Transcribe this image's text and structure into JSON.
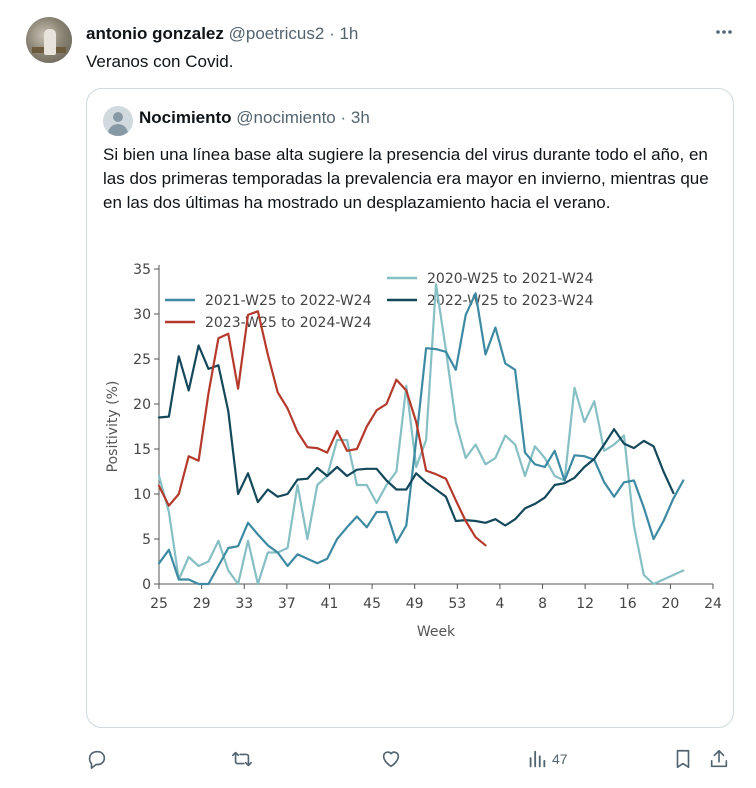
{
  "tweet": {
    "author_name": "antonio gonzalez",
    "author_handle": "@poetricus2",
    "separator": "·",
    "time": "1h",
    "text": "Veranos con Covid."
  },
  "quote": {
    "author_name": "Nocimiento",
    "author_handle": "@nocimiento",
    "separator": "·",
    "time": "3h",
    "text": "Si bien una línea base alta sugiere la presencia del virus durante todo el año, en las dos primeras temporadas la prevalencia era mayor en invierno, mientras que en las dos últimas ha mostrado un desplazamiento hacia el verano."
  },
  "actions": {
    "views_count": "47"
  },
  "icons": {
    "more": "more-horizontal-icon",
    "reply": "reply-icon",
    "retweet": "retweet-icon",
    "like": "heart-icon",
    "views": "views-icon",
    "bookmark": "bookmark-icon",
    "share": "share-icon"
  },
  "chart_data": {
    "type": "line",
    "xlabel": "Week",
    "ylabel": "Positivity (%)",
    "ylim": [
      0,
      35
    ],
    "yticks": [
      "0",
      "5",
      "10",
      "15",
      "20",
      "25",
      "30",
      "35"
    ],
    "xticks": [
      "25",
      "29",
      "33",
      "37",
      "41",
      "45",
      "49",
      "53",
      "4",
      "8",
      "12",
      "16",
      "20",
      "24"
    ],
    "x_positions": 57,
    "grid": false,
    "legend_placement": "top",
    "series": [
      {
        "name": "2020-W25 to 2021-W24",
        "color": "#86bfc4",
        "values": [
          12,
          8,
          0.5,
          3,
          2,
          2.5,
          4.8,
          1.5,
          0,
          4.8,
          0,
          3.5,
          3.5,
          4,
          11,
          5,
          11,
          12,
          16,
          16,
          11,
          11,
          9,
          11,
          12.5,
          22,
          13,
          16,
          33.3,
          26,
          18,
          14,
          15.5,
          13.3,
          14,
          16.5,
          15.5,
          12,
          15.3,
          14,
          12,
          11.5,
          21.8,
          18,
          20.3,
          14.8,
          15.5,
          16.5,
          6.5,
          1,
          0,
          0.5,
          1,
          1.5
        ]
      },
      {
        "name": "2021-W25 to 2022-W24",
        "color": "#3d8aa3",
        "values": [
          2.3,
          3.8,
          0.5,
          0.5,
          0,
          0,
          2,
          4,
          4.2,
          6.8,
          5.5,
          4.3,
          3.5,
          2,
          3.3,
          2.8,
          2.3,
          2.8,
          5,
          6.3,
          7.5,
          6.3,
          8,
          8,
          4.6,
          6.5,
          16,
          26.2,
          26.1,
          25.8,
          23.8,
          29.9,
          32.3,
          25.5,
          28.5,
          24.5,
          23.8,
          14.6,
          13.3,
          13,
          14.8,
          11.5,
          14.3,
          14.2,
          13.8,
          11.3,
          9.7,
          11.3,
          11.5,
          8.5,
          5,
          7,
          9.5,
          11.5
        ]
      },
      {
        "name": "2022-W25 to 2023-W24",
        "color": "#14485b",
        "values": [
          18.5,
          18.6,
          25.3,
          21.5,
          26.5,
          23.9,
          24.3,
          19.2,
          10,
          12.3,
          9.1,
          10.5,
          9.7,
          10,
          11.6,
          11.7,
          12.9,
          12,
          13,
          12,
          12.7,
          12.8,
          12.8,
          11.5,
          10.5,
          10.5,
          12.3,
          11.3,
          10.5,
          9.7,
          7,
          7.1,
          7,
          6.8,
          7.2,
          6.5,
          7.2,
          8.4,
          8.9,
          9.6,
          11,
          11.2,
          11.8,
          13,
          13.9,
          15.5,
          17.2,
          15.6,
          15.1,
          15.9,
          15.3,
          12.5,
          10.1
        ]
      },
      {
        "name": "2023-W25 to 2024-W24",
        "color": "#b53a2b",
        "values": [
          10.9,
          8.7,
          10,
          14.2,
          13.7,
          21.2,
          27.3,
          27.8,
          21.7,
          29.9,
          30.3,
          25.5,
          21.3,
          19.5,
          16.9,
          15.2,
          15.1,
          14.6,
          17,
          14.8,
          15,
          17.5,
          19.3,
          20,
          22.7,
          21.5,
          18,
          12.6,
          12.2,
          11.7,
          9.3,
          7,
          5.2,
          4.3
        ]
      }
    ]
  }
}
